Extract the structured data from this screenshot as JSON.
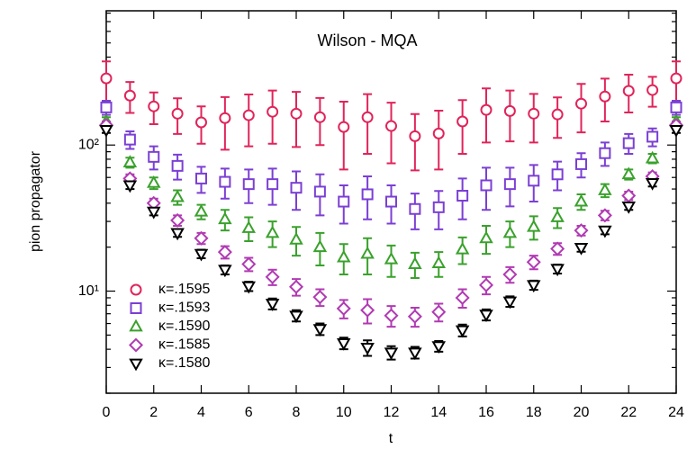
{
  "chart_data": {
    "type": "scatter",
    "title": "Wilson - MQA",
    "x_label": "t",
    "y_label": "pion propagator",
    "x": [
      0,
      1,
      2,
      3,
      4,
      5,
      6,
      7,
      8,
      9,
      10,
      11,
      12,
      13,
      14,
      15,
      16,
      17,
      18,
      19,
      20,
      21,
      22,
      23,
      24
    ],
    "xlim": [
      0,
      24
    ],
    "xticks": [
      0,
      2,
      4,
      6,
      8,
      10,
      12,
      14,
      16,
      18,
      20,
      22,
      24
    ],
    "ylim": [
      2,
      830
    ],
    "log_y": true,
    "yticks": [
      {
        "value": 10,
        "label": "10¹"
      },
      {
        "value": 100,
        "label": "10²"
      }
    ],
    "yminorticks": [
      2,
      3,
      4,
      5,
      6,
      7,
      8,
      9,
      20,
      30,
      40,
      50,
      60,
      70,
      80,
      90,
      200,
      300,
      400,
      500,
      600,
      700,
      800
    ],
    "legend": "lower-left",
    "series": [
      {
        "name": "κ=.1595",
        "color": "#e0245a",
        "marker": "circle",
        "values": [
          286,
          218,
          184,
          164,
          143,
          153,
          160,
          169,
          164,
          155,
          133,
          155,
          135,
          115,
          120,
          145,
          174,
          171,
          164,
          162,
          192,
          215,
          235,
          238,
          286
        ],
        "errors": [
          88,
          52,
          45,
          45,
          41,
          60,
          62,
          67,
          67,
          55,
          65,
          68,
          60,
          48,
          52,
          58,
          70,
          65,
          60,
          50,
          70,
          70,
          68,
          55,
          88
        ]
      },
      {
        "name": "κ=.1593",
        "color": "#7b3fd4",
        "marker": "square",
        "values": [
          181,
          109,
          83,
          72,
          59,
          56,
          54,
          54,
          51,
          48,
          41,
          46,
          41,
          36.5,
          37.5,
          45,
          53,
          54,
          57,
          63,
          74,
          88,
          103,
          114,
          181
        ],
        "errors": [
          20,
          15,
          15,
          14,
          12,
          13,
          14,
          15,
          15,
          15,
          12,
          15,
          12,
          10,
          11,
          14,
          17,
          16,
          16,
          14,
          14,
          16,
          16,
          16,
          20
        ]
      },
      {
        "name": "κ=.1590",
        "color": "#3aa12c",
        "marker": "triangle-up",
        "values": [
          145,
          76,
          55,
          44,
          35,
          31,
          27,
          25,
          22.5,
          20,
          17,
          18,
          16.5,
          15.3,
          15.5,
          19.3,
          23,
          25,
          27.5,
          32,
          41,
          49,
          63,
          81,
          145
        ],
        "errors": [
          10,
          6,
          5,
          5,
          4,
          5,
          5,
          5,
          5,
          5,
          4,
          5,
          4,
          3,
          3,
          4,
          5,
          5,
          5,
          5,
          5,
          5,
          5,
          6,
          10
        ]
      },
      {
        "name": "κ=.1585",
        "color": "#b13ab3",
        "marker": "diamond",
        "values": [
          137,
          59,
          40,
          30.5,
          23,
          18.5,
          15.3,
          12.5,
          10.7,
          9.1,
          7.6,
          7.4,
          6.8,
          6.7,
          7.2,
          9.0,
          11.0,
          13,
          15.8,
          19.5,
          26,
          33,
          45,
          61,
          137
        ],
        "errors": [
          8,
          4,
          3,
          2.5,
          2,
          1.8,
          1.6,
          1.5,
          1.4,
          1.2,
          1.1,
          1.4,
          1.1,
          1,
          1,
          1.3,
          1.5,
          1.6,
          1.7,
          1.8,
          2,
          2.5,
          3,
          4,
          8
        ]
      },
      {
        "name": "κ=.1580",
        "color": "#000000",
        "marker": "triangle-down",
        "values": [
          127,
          53,
          35,
          25,
          18,
          14,
          10.8,
          8.2,
          6.8,
          5.5,
          4.4,
          4.1,
          3.8,
          3.8,
          4.2,
          5.4,
          6.9,
          8.5,
          11,
          14.2,
          19.8,
          26,
          38,
          55,
          127
        ],
        "errors": [
          6,
          3,
          2,
          1.5,
          1.2,
          1,
          0.8,
          0.7,
          0.6,
          0.5,
          0.4,
          0.5,
          0.4,
          0.35,
          0.35,
          0.5,
          0.6,
          0.7,
          0.8,
          1,
          1.2,
          1.5,
          2,
          3,
          6
        ]
      }
    ]
  }
}
